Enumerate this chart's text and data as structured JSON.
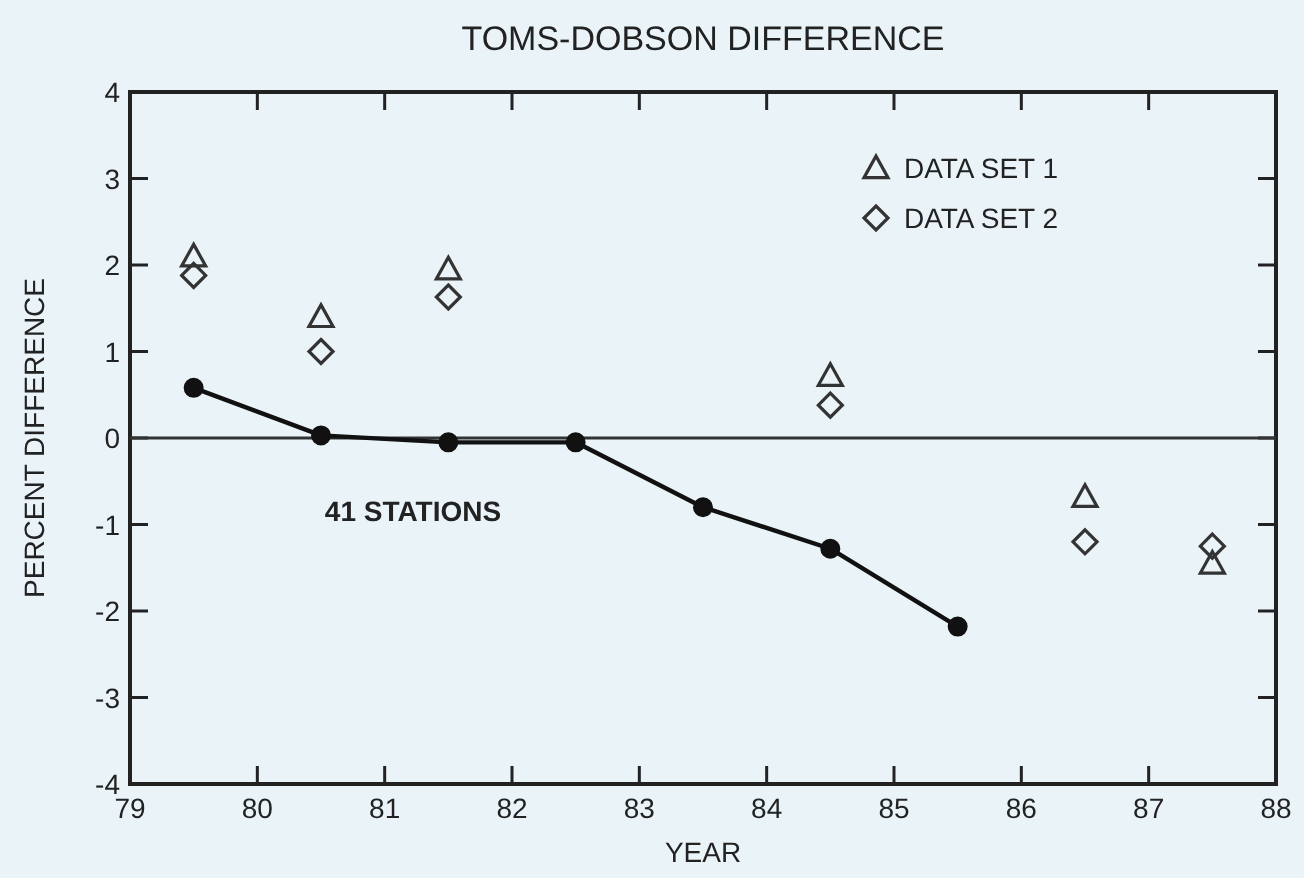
{
  "chart_data": {
    "type": "scatter",
    "title": "TOMS-DOBSON DIFFERENCE",
    "xlabel": "YEAR",
    "ylabel": "PERCENT DIFFERENCE",
    "x": [
      79.5,
      80.5,
      81.5,
      84.5,
      86.5,
      87.5
    ],
    "series": [
      {
        "name": "DATA SET 1",
        "marker": "triangle",
        "color": "#333333",
        "values": [
          2.1,
          1.4,
          1.95,
          0.72,
          -0.68,
          -1.45
        ]
      },
      {
        "name": "DATA SET 2",
        "marker": "diamond",
        "color": "#333333",
        "values": [
          1.88,
          1.0,
          1.63,
          0.38,
          -1.2,
          -1.25
        ]
      },
      {
        "type": "line",
        "marker": "circle",
        "color": "#111111",
        "x": [
          79.5,
          80.5,
          81.5,
          82.5,
          83.5,
          84.5,
          85.5
        ],
        "values": [
          0.58,
          0.03,
          -0.05,
          -0.05,
          -0.8,
          -1.28,
          -2.18
        ]
      }
    ],
    "xlim": [
      79,
      88
    ],
    "xticks": [
      79,
      80,
      81,
      82,
      83,
      84,
      85,
      86,
      87,
      88
    ],
    "ylim": [
      -4,
      4
    ],
    "yticks": [
      -4,
      -3,
      -2,
      -1,
      0,
      1,
      2,
      3,
      4
    ],
    "ref_lines": [
      {
        "axis": "y",
        "value": 0,
        "color": "#333333"
      }
    ],
    "annotations": [
      "41 STATIONS"
    ],
    "legend": "top right",
    "grid": false
  }
}
